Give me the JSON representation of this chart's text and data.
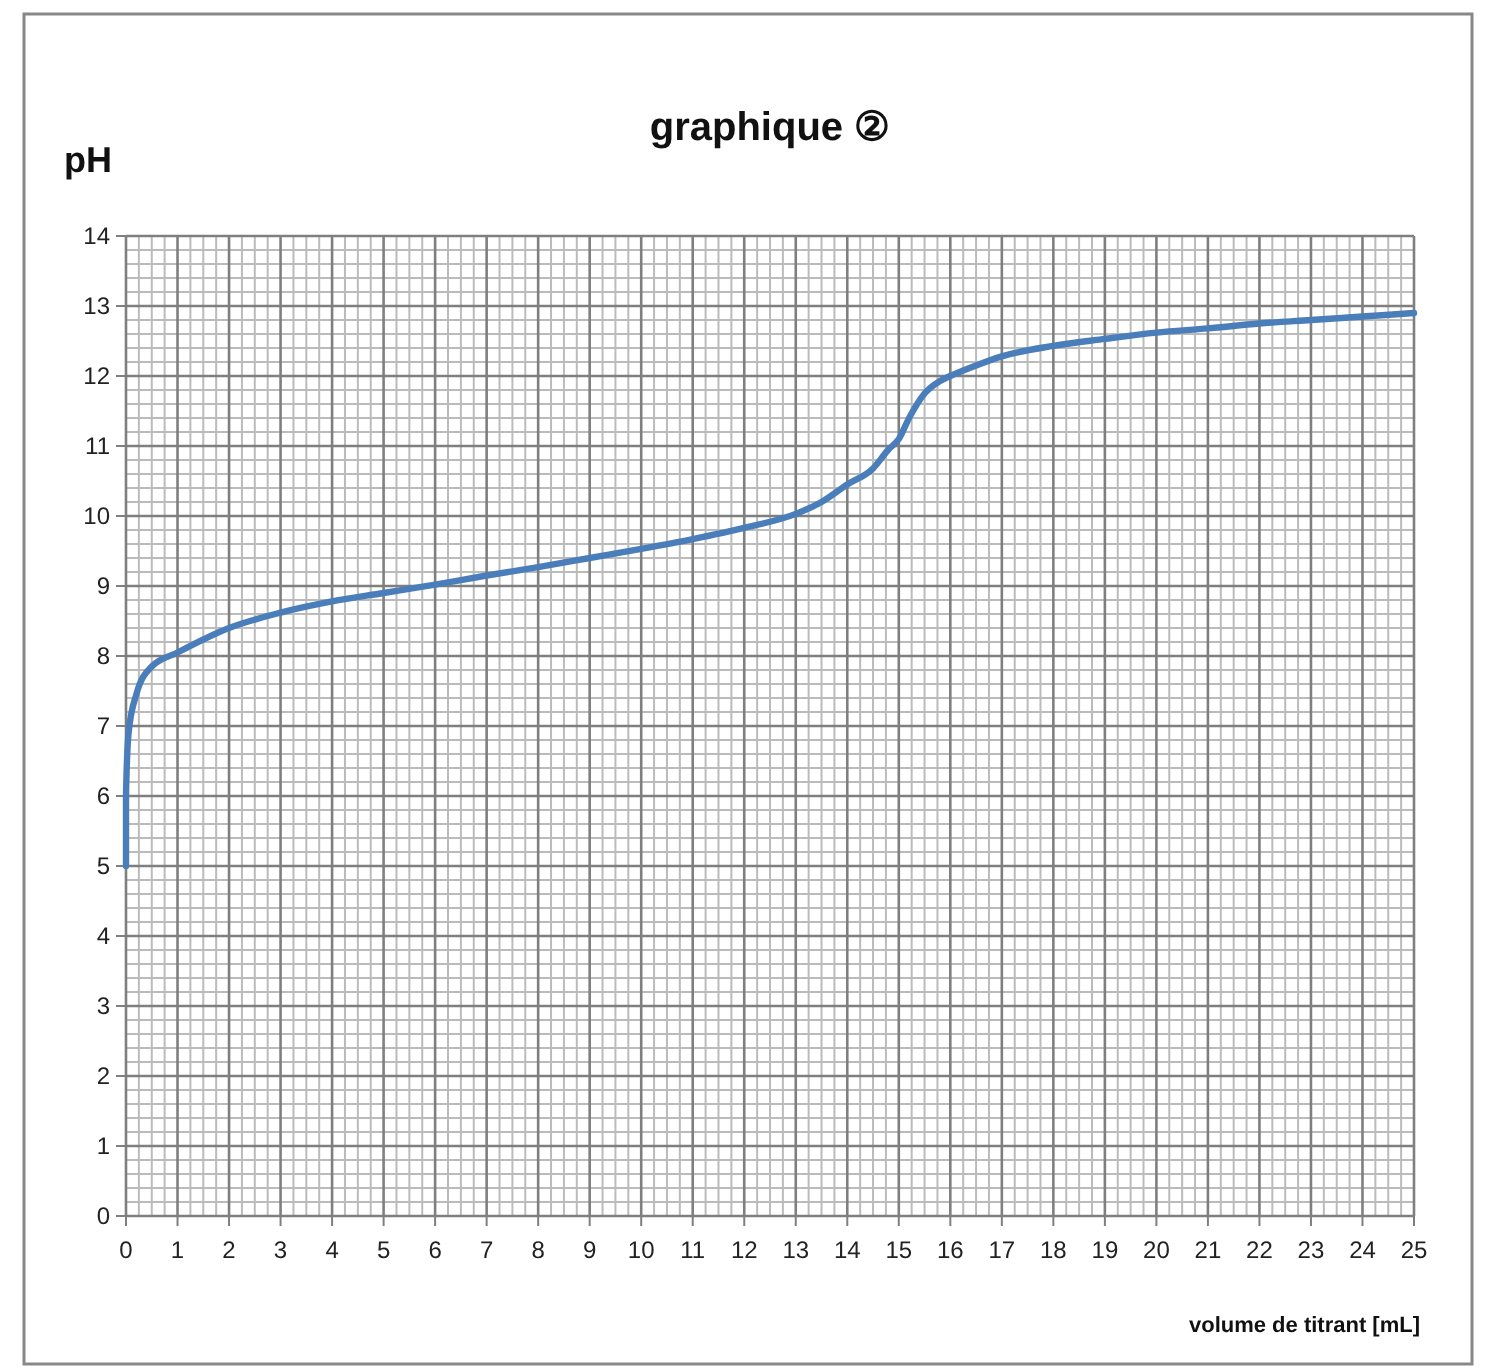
{
  "chart_data": {
    "type": "line",
    "title": "graphique ②",
    "ylabel": "pH",
    "xlabel": "volume de titrant [mL]",
    "x": [
      0,
      0,
      0.05,
      0.2,
      0.5,
      1,
      2,
      3,
      4,
      5,
      6,
      7,
      8,
      9,
      10,
      11,
      12,
      13,
      13.5,
      14,
      14.5,
      14.8,
      15,
      15.2,
      15.5,
      15.8,
      16,
      16.5,
      17,
      18,
      19,
      20,
      21,
      22,
      23,
      24,
      25
    ],
    "series": [
      {
        "color": "#4a7ebb",
        "values": [
          5,
          6,
          6.9,
          7.45,
          7.85,
          8.05,
          8.4,
          8.62,
          8.78,
          8.9,
          9.02,
          9.15,
          9.27,
          9.4,
          9.53,
          9.67,
          9.83,
          10.03,
          10.2,
          10.45,
          10.68,
          10.95,
          11.1,
          11.4,
          11.75,
          11.93,
          12.0,
          12.15,
          12.28,
          12.43,
          12.53,
          12.62,
          12.68,
          12.75,
          12.8,
          12.85,
          12.9
        ]
      }
    ],
    "xlim": [
      0,
      25
    ],
    "xticks": [
      0,
      1,
      2,
      3,
      4,
      5,
      6,
      7,
      8,
      9,
      10,
      11,
      12,
      13,
      14,
      15,
      16,
      17,
      18,
      19,
      20,
      21,
      22,
      23,
      24,
      25
    ],
    "ylim": [
      0,
      14
    ],
    "yticks": [
      0,
      1,
      2,
      3,
      4,
      5,
      6,
      7,
      8,
      9,
      10,
      11,
      12,
      13,
      14
    ],
    "grid": true,
    "marker": "none",
    "line_style": "solid"
  }
}
